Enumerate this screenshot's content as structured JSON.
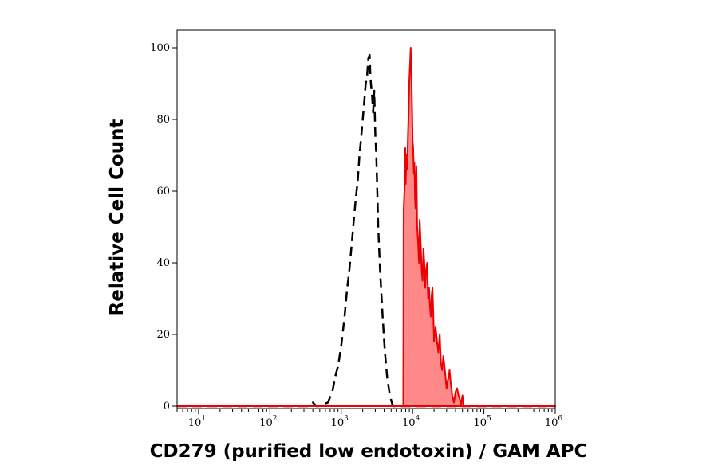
{
  "chart_data": {
    "type": "area",
    "title": "",
    "xlabel": "CD279 (purified low endotoxin) / GAM APC",
    "ylabel": "Relative Cell Count",
    "x_scale": "log",
    "xlim": [
      5,
      1000000
    ],
    "ylim": [
      0,
      105
    ],
    "x_ticks": [
      {
        "value": 10,
        "base": "10",
        "exp": "1"
      },
      {
        "value": 100,
        "base": "10",
        "exp": "2"
      },
      {
        "value": 1000,
        "base": "10",
        "exp": "3"
      },
      {
        "value": 10000,
        "base": "10",
        "exp": "4"
      },
      {
        "value": 100000,
        "base": "10",
        "exp": "5"
      },
      {
        "value": 1000000,
        "base": "10",
        "exp": "6"
      }
    ],
    "y_ticks": [
      0,
      20,
      40,
      60,
      80,
      100
    ],
    "grid": false,
    "legend": "none",
    "series": [
      {
        "style": "dashed-outline",
        "color": "#000000",
        "points": [
          [
            5,
            0
          ],
          [
            350,
            0
          ],
          [
            400,
            1
          ],
          [
            450,
            0
          ],
          [
            480,
            0
          ],
          [
            550,
            0.5
          ],
          [
            650,
            1
          ],
          [
            750,
            4
          ],
          [
            820,
            8
          ],
          [
            870,
            10
          ],
          [
            900,
            11
          ],
          [
            1000,
            17
          ],
          [
            1100,
            24
          ],
          [
            1200,
            32
          ],
          [
            1300,
            38
          ],
          [
            1400,
            45
          ],
          [
            1500,
            52
          ],
          [
            1600,
            58
          ],
          [
            1700,
            63
          ],
          [
            1800,
            70
          ],
          [
            1900,
            75
          ],
          [
            2000,
            80
          ],
          [
            2100,
            85
          ],
          [
            2200,
            90
          ],
          [
            2300,
            92
          ],
          [
            2400,
            97
          ],
          [
            2500,
            98
          ],
          [
            2550,
            93
          ],
          [
            2600,
            90
          ],
          [
            2700,
            87
          ],
          [
            2800,
            82
          ],
          [
            2900,
            88
          ],
          [
            3000,
            76
          ],
          [
            3100,
            70
          ],
          [
            3200,
            60
          ],
          [
            3300,
            50
          ],
          [
            3500,
            38
          ],
          [
            3800,
            25
          ],
          [
            4100,
            15
          ],
          [
            4400,
            8
          ],
          [
            4800,
            3
          ],
          [
            5200,
            0.5
          ],
          [
            5500,
            0
          ],
          [
            1000000,
            0
          ]
        ]
      },
      {
        "style": "filled",
        "color": "#ee0000",
        "fill": "#ff8888",
        "points": [
          [
            5,
            0
          ],
          [
            7400,
            0
          ],
          [
            7500,
            55
          ],
          [
            7700,
            60
          ],
          [
            7900,
            72
          ],
          [
            8000,
            62
          ],
          [
            8200,
            70
          ],
          [
            8400,
            66
          ],
          [
            8600,
            75
          ],
          [
            8800,
            82
          ],
          [
            9000,
            91
          ],
          [
            9200,
            95
          ],
          [
            9400,
            100
          ],
          [
            9600,
            93
          ],
          [
            9800,
            85
          ],
          [
            10000,
            74
          ],
          [
            10200,
            72
          ],
          [
            10400,
            65
          ],
          [
            10600,
            68
          ],
          [
            10800,
            58
          ],
          [
            11000,
            55
          ],
          [
            11300,
            67
          ],
          [
            11600,
            50
          ],
          [
            12000,
            45
          ],
          [
            12300,
            40
          ],
          [
            12600,
            52
          ],
          [
            13000,
            45
          ],
          [
            13400,
            38
          ],
          [
            13800,
            35
          ],
          [
            14200,
            44
          ],
          [
            14600,
            40
          ],
          [
            15000,
            33
          ],
          [
            15500,
            38
          ],
          [
            16000,
            40
          ],
          [
            16500,
            30
          ],
          [
            17000,
            33
          ],
          [
            17500,
            28
          ],
          [
            18000,
            25
          ],
          [
            18500,
            31
          ],
          [
            19000,
            33
          ],
          [
            19500,
            26
          ],
          [
            20000,
            18
          ],
          [
            21000,
            22
          ],
          [
            22000,
            18
          ],
          [
            23000,
            15
          ],
          [
            24000,
            20
          ],
          [
            25000,
            12
          ],
          [
            26000,
            10
          ],
          [
            27000,
            14
          ],
          [
            28000,
            11
          ],
          [
            29000,
            8
          ],
          [
            30000,
            5
          ],
          [
            31000,
            7
          ],
          [
            32000,
            8
          ],
          [
            33000,
            10
          ],
          [
            34000,
            7
          ],
          [
            35000,
            5
          ],
          [
            36000,
            3
          ],
          [
            38000,
            1
          ],
          [
            40000,
            4
          ],
          [
            42000,
            5
          ],
          [
            44000,
            3
          ],
          [
            46000,
            2
          ],
          [
            48000,
            0.5
          ],
          [
            50000,
            3
          ],
          [
            52000,
            0
          ],
          [
            1000000,
            0
          ]
        ]
      }
    ]
  }
}
